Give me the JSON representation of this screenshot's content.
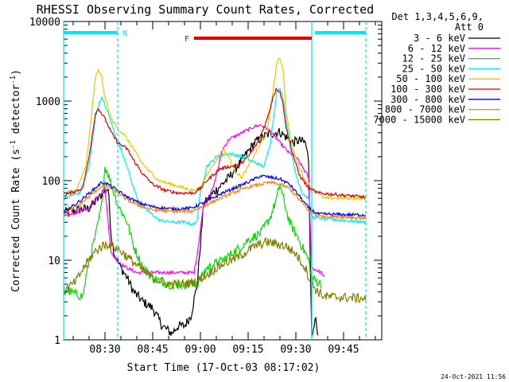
{
  "chart_data": {
    "type": "line",
    "title": "RHESSI Observing Summary Count Rates, Corrected",
    "xlabel": "Start Time (17-Oct-03 08:17:02)",
    "ylabel_main": "Corrected Count Rate (s",
    "ylabel_sup1": "-1",
    "ylabel_mid": " detector",
    "ylabel_sup2": "-1",
    "ylabel_end": ")",
    "y_scale": "log",
    "ylim": [
      1,
      10000
    ],
    "xlim_minutes": [
      0,
      100
    ],
    "x_ticks": [
      "08:30",
      "08:45",
      "09:00",
      "09:15",
      "09:30",
      "09:45"
    ],
    "y_ticks": [
      "1",
      "10",
      "100",
      "1000",
      "10000"
    ],
    "legend_header": [
      "Det 1,3,4,5,6,9,",
      "Att 0"
    ],
    "legend_position": "outside-right",
    "timestamp": "24-Oct-2021 11:56",
    "flags": [
      {
        "label": "N",
        "color": "#00e5ee",
        "segments": [
          [
            0,
            17
          ],
          [
            79,
            95
          ]
        ]
      },
      {
        "label": "F",
        "color": "#e00000",
        "segments": [
          [
            41,
            78
          ]
        ]
      }
    ],
    "markers": {
      "solid": [
        0,
        78
      ],
      "dashed": [
        17,
        95
      ]
    },
    "series": [
      {
        "name": "3 - 6 keV",
        "color": "#000000",
        "points": [
          [
            0,
            40
          ],
          [
            8,
            45
          ],
          [
            11,
            60
          ],
          [
            13,
            75
          ],
          [
            14,
            80
          ],
          [
            15,
            20
          ],
          [
            16,
            12
          ],
          [
            18,
            8
          ],
          [
            20,
            6
          ],
          [
            22,
            4
          ],
          [
            25,
            3
          ],
          [
            28,
            2.5
          ],
          [
            31,
            1.5
          ],
          [
            34,
            1.2
          ],
          [
            36,
            1.5
          ],
          [
            38,
            1.5
          ],
          [
            40,
            2
          ],
          [
            42,
            5
          ],
          [
            44,
            50
          ],
          [
            47,
            70
          ],
          [
            52,
            110
          ],
          [
            56,
            180
          ],
          [
            60,
            300
          ],
          [
            64,
            380
          ],
          [
            68,
            410
          ],
          [
            72,
            300
          ],
          [
            74,
            320
          ],
          [
            76,
            300
          ],
          [
            77,
            180
          ],
          [
            78,
            1
          ],
          [
            79,
            2
          ],
          [
            80,
            1
          ]
        ]
      },
      {
        "name": "6 - 12 keV",
        "color": "#ff00ff",
        "points": [
          [
            0,
            35
          ],
          [
            8,
            45
          ],
          [
            10,
            60
          ],
          [
            12,
            72
          ],
          [
            13,
            80
          ],
          [
            14,
            30
          ],
          [
            15,
            12
          ],
          [
            18,
            9
          ],
          [
            20,
            8
          ],
          [
            23,
            7
          ],
          [
            28,
            7
          ],
          [
            33,
            7
          ],
          [
            38,
            7
          ],
          [
            41,
            7
          ],
          [
            42,
            12
          ],
          [
            44,
            50
          ],
          [
            47,
            80
          ],
          [
            50,
            250
          ],
          [
            52,
            330
          ],
          [
            56,
            400
          ],
          [
            60,
            480
          ],
          [
            62,
            500
          ],
          [
            65,
            420
          ],
          [
            68,
            300
          ],
          [
            71,
            220
          ],
          [
            73,
            200
          ],
          [
            75,
            150
          ],
          [
            77,
            110
          ],
          [
            78,
            8
          ],
          [
            81,
            7
          ],
          [
            82,
            6
          ]
        ]
      },
      {
        "name": "12 - 25 keV",
        "color": "#00dd00",
        "points": [
          [
            0,
            4.5
          ],
          [
            2,
            4
          ],
          [
            6,
            3.5
          ],
          [
            8,
            10
          ],
          [
            10,
            20
          ],
          [
            12,
            50
          ],
          [
            13,
            150
          ],
          [
            14,
            120
          ],
          [
            17,
            50
          ],
          [
            20,
            30
          ],
          [
            22,
            15
          ],
          [
            25,
            8
          ],
          [
            28,
            6
          ],
          [
            33,
            5
          ],
          [
            38,
            5
          ],
          [
            42,
            5
          ],
          [
            45,
            8
          ],
          [
            50,
            10
          ],
          [
            55,
            14
          ],
          [
            58,
            18
          ],
          [
            62,
            22
          ],
          [
            65,
            35
          ],
          [
            67,
            60
          ],
          [
            68,
            90
          ],
          [
            69,
            60
          ],
          [
            71,
            30
          ],
          [
            74,
            18
          ],
          [
            77,
            10
          ],
          [
            78,
            6
          ],
          [
            81,
            5
          ]
        ]
      },
      {
        "name": "25 - 50 keV",
        "color": "#00eeee",
        "points": [
          [
            0,
            60
          ],
          [
            5,
            70
          ],
          [
            8,
            150
          ],
          [
            10,
            650
          ],
          [
            11,
            900
          ],
          [
            12,
            1100
          ],
          [
            14,
            700
          ],
          [
            16,
            400
          ],
          [
            18,
            250
          ],
          [
            20,
            150
          ],
          [
            22,
            80
          ],
          [
            24,
            50
          ],
          [
            27,
            40
          ],
          [
            30,
            32
          ],
          [
            34,
            30
          ],
          [
            38,
            30
          ],
          [
            41,
            28
          ],
          [
            42,
            32
          ],
          [
            43,
            70
          ],
          [
            45,
            150
          ],
          [
            48,
            200
          ],
          [
            52,
            220
          ],
          [
            56,
            200
          ],
          [
            60,
            170
          ],
          [
            63,
            150
          ],
          [
            65,
            300
          ],
          [
            67,
            1300
          ],
          [
            68,
            1400
          ],
          [
            69,
            1100
          ],
          [
            71,
            300
          ],
          [
            73,
            120
          ],
          [
            75,
            70
          ],
          [
            77,
            60
          ],
          [
            78,
            35
          ],
          [
            82,
            33
          ],
          [
            95,
            30
          ]
        ]
      },
      {
        "name": "50 - 100 keV",
        "color": "#e6c800",
        "points": [
          [
            0,
            70
          ],
          [
            4,
            75
          ],
          [
            7,
            150
          ],
          [
            9,
            800
          ],
          [
            10,
            2000
          ],
          [
            11,
            2400
          ],
          [
            12,
            2000
          ],
          [
            13,
            1100
          ],
          [
            15,
            600
          ],
          [
            17,
            450
          ],
          [
            19,
            380
          ],
          [
            22,
            250
          ],
          [
            24,
            180
          ],
          [
            27,
            130
          ],
          [
            30,
            100
          ],
          [
            34,
            90
          ],
          [
            38,
            80
          ],
          [
            41,
            75
          ],
          [
            43,
            80
          ],
          [
            45,
            120
          ],
          [
            48,
            180
          ],
          [
            50,
            250
          ],
          [
            52,
            200
          ],
          [
            54,
            130
          ],
          [
            56,
            110
          ],
          [
            58,
            150
          ],
          [
            61,
            250
          ],
          [
            64,
            400
          ],
          [
            66,
            1500
          ],
          [
            67,
            3000
          ],
          [
            68,
            3400
          ],
          [
            69,
            2500
          ],
          [
            70,
            700
          ],
          [
            72,
            250
          ],
          [
            74,
            150
          ],
          [
            76,
            100
          ],
          [
            78,
            80
          ],
          [
            80,
            70
          ],
          [
            82,
            60
          ],
          [
            95,
            60
          ]
        ]
      },
      {
        "name": "100 - 300 keV",
        "color": "#e00000",
        "points": [
          [
            0,
            65
          ],
          [
            6,
            80
          ],
          [
            8,
            200
          ],
          [
            10,
            700
          ],
          [
            11,
            800
          ],
          [
            13,
            600
          ],
          [
            15,
            400
          ],
          [
            17,
            300
          ],
          [
            20,
            250
          ],
          [
            22,
            180
          ],
          [
            25,
            120
          ],
          [
            28,
            90
          ],
          [
            32,
            75
          ],
          [
            36,
            70
          ],
          [
            41,
            70
          ],
          [
            43,
            80
          ],
          [
            45,
            100
          ],
          [
            49,
            140
          ],
          [
            52,
            150
          ],
          [
            55,
            155
          ],
          [
            58,
            200
          ],
          [
            61,
            300
          ],
          [
            64,
            600
          ],
          [
            66,
            1200
          ],
          [
            67,
            1450
          ],
          [
            68,
            1300
          ],
          [
            69,
            900
          ],
          [
            70,
            450
          ],
          [
            72,
            220
          ],
          [
            74,
            120
          ],
          [
            77,
            80
          ],
          [
            80,
            70
          ],
          [
            95,
            62
          ]
        ]
      },
      {
        "name": "300 - 800 keV",
        "color": "#0000ee",
        "points": [
          [
            0,
            40
          ],
          [
            5,
            55
          ],
          [
            9,
            75
          ],
          [
            12,
            95
          ],
          [
            14,
            90
          ],
          [
            17,
            75
          ],
          [
            20,
            62
          ],
          [
            24,
            52
          ],
          [
            28,
            47
          ],
          [
            34,
            44
          ],
          [
            40,
            45
          ],
          [
            45,
            55
          ],
          [
            50,
            70
          ],
          [
            55,
            85
          ],
          [
            59,
            100
          ],
          [
            62,
            115
          ],
          [
            65,
            110
          ],
          [
            68,
            105
          ],
          [
            71,
            90
          ],
          [
            74,
            65
          ],
          [
            77,
            45
          ],
          [
            80,
            38
          ],
          [
            95,
            37
          ]
        ]
      },
      {
        "name": "800 - 7000 keV",
        "color": "#ff8000",
        "points": [
          [
            0,
            38
          ],
          [
            5,
            50
          ],
          [
            9,
            68
          ],
          [
            12,
            85
          ],
          [
            14,
            84
          ],
          [
            17,
            70
          ],
          [
            20,
            57
          ],
          [
            24,
            48
          ],
          [
            28,
            43
          ],
          [
            34,
            41
          ],
          [
            40,
            41
          ],
          [
            45,
            50
          ],
          [
            50,
            62
          ],
          [
            55,
            75
          ],
          [
            59,
            85
          ],
          [
            62,
            90
          ],
          [
            65,
            95
          ],
          [
            68,
            90
          ],
          [
            71,
            80
          ],
          [
            74,
            58
          ],
          [
            77,
            42
          ],
          [
            80,
            36
          ],
          [
            95,
            34
          ]
        ]
      },
      {
        "name": "7000 - 15000 keV",
        "color": "#808000",
        "points": [
          [
            0,
            4
          ],
          [
            4,
            5.5
          ],
          [
            7,
            9
          ],
          [
            10,
            13
          ],
          [
            12,
            15
          ],
          [
            14,
            16
          ],
          [
            17,
            14
          ],
          [
            20,
            11
          ],
          [
            24,
            8
          ],
          [
            28,
            6
          ],
          [
            33,
            5
          ],
          [
            38,
            5
          ],
          [
            42,
            5.5
          ],
          [
            46,
            7
          ],
          [
            50,
            9
          ],
          [
            55,
            11
          ],
          [
            60,
            15
          ],
          [
            64,
            17
          ],
          [
            67,
            16
          ],
          [
            70,
            15
          ],
          [
            73,
            12
          ],
          [
            76,
            8
          ],
          [
            78,
            5
          ],
          [
            80,
            4
          ],
          [
            82,
            3.5
          ],
          [
            95,
            3.3
          ]
        ]
      }
    ]
  }
}
